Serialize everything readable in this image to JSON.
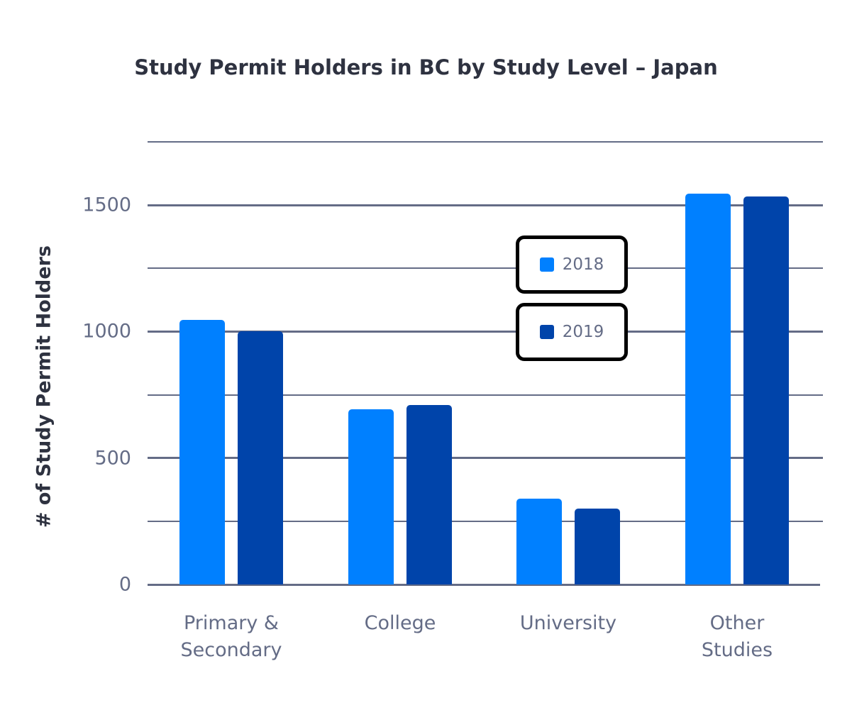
{
  "chart_data": {
    "type": "bar",
    "title": "Study Permit Holders in BC by Study Level – Japan",
    "xlabel": "",
    "ylabel": "# of Study Permit Holders",
    "categories": [
      "Primary &\nSecondary",
      "College",
      "University",
      "Other\nStudies"
    ],
    "series": [
      {
        "name": "2018",
        "color": "#0080ff",
        "values": [
          1046,
          692,
          339,
          1545
        ]
      },
      {
        "name": "2019",
        "color": "#0044aa",
        "values": [
          1001,
          709,
          300,
          1534
        ]
      }
    ],
    "ylim": [
      0,
      1750
    ],
    "yticks": [
      "0",
      "500",
      "1000",
      "1500"
    ],
    "grid": true,
    "legend_position": "center"
  }
}
